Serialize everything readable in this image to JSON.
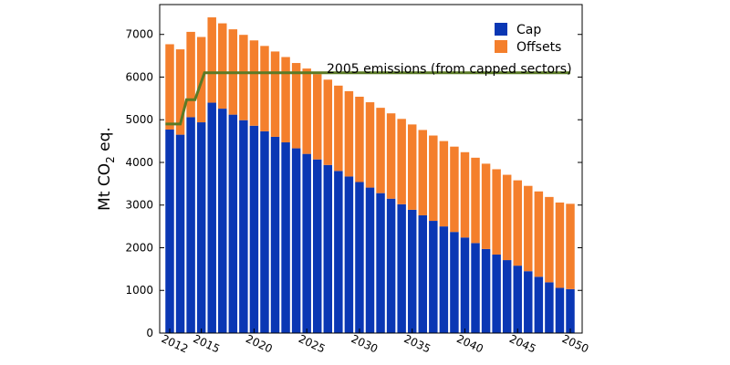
{
  "chart_data": {
    "type": "bar",
    "stacked": true,
    "x": [
      2012,
      2013,
      2014,
      2015,
      2016,
      2017,
      2018,
      2019,
      2020,
      2021,
      2022,
      2023,
      2024,
      2025,
      2026,
      2027,
      2028,
      2029,
      2030,
      2031,
      2032,
      2033,
      2034,
      2035,
      2036,
      2037,
      2038,
      2039,
      2040,
      2041,
      2042,
      2043,
      2044,
      2045,
      2046,
      2047,
      2048,
      2049,
      2050
    ],
    "x_tick_labels": [
      "2012",
      "2015",
      "2020",
      "2025",
      "2030",
      "2035",
      "2040",
      "2045",
      "2050"
    ],
    "x_tick_values": [
      2012,
      2015,
      2020,
      2025,
      2030,
      2035,
      2040,
      2045,
      2050
    ],
    "y_ticks": [
      0,
      1000,
      2000,
      3000,
      4000,
      5000,
      6000,
      7000
    ],
    "ylim": [
      0,
      7700
    ],
    "ylabel_parts": {
      "pre": "Mt CO",
      "sub": "2",
      "post": " eq."
    },
    "series": [
      {
        "name": "Cap",
        "color": "#0a37b4",
        "values": [
          4770,
          4650,
          5060,
          4940,
          5400,
          5260,
          5120,
          4990,
          4860,
          4730,
          4600,
          4470,
          4330,
          4200,
          4070,
          3940,
          3800,
          3670,
          3540,
          3410,
          3280,
          3150,
          3020,
          2890,
          2760,
          2630,
          2500,
          2370,
          2240,
          2110,
          1970,
          1840,
          1710,
          1580,
          1450,
          1320,
          1190,
          1060,
          1030
        ]
      },
      {
        "name": "Offsets",
        "color": "#f47f2c",
        "values": [
          2000,
          2000,
          2000,
          2000,
          2000,
          2000,
          2000,
          2000,
          2000,
          2000,
          2000,
          2000,
          2000,
          2000,
          2000,
          2000,
          2000,
          2000,
          2000,
          2000,
          2000,
          2000,
          2000,
          2000,
          2000,
          2000,
          2000,
          2000,
          2000,
          2000,
          2000,
          2000,
          2000,
          2000,
          2000,
          2000,
          2000,
          2000,
          2000
        ]
      }
    ],
    "reference_line": {
      "label": "2005 emissions (from capped sectors)",
      "color": "#5a7a26",
      "points": [
        [
          2011.6,
          4900
        ],
        [
          2013,
          4900
        ],
        [
          2013.6,
          5470
        ],
        [
          2014.4,
          5470
        ],
        [
          2015.3,
          6100
        ],
        [
          2050,
          6100
        ]
      ]
    },
    "legend_position": "top-right",
    "grid": false
  }
}
